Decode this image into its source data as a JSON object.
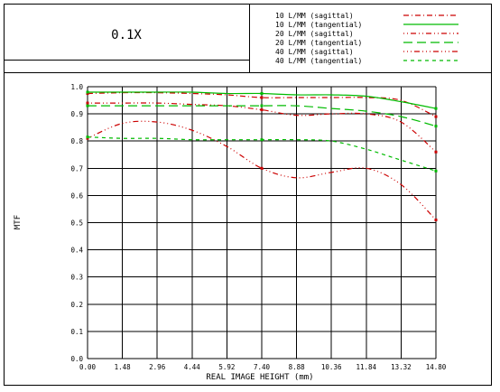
{
  "chart_data": {
    "type": "line",
    "title": "0.1X",
    "xlabel": "REAL IMAGE HEIGHT (mm)",
    "ylabel": "MTF",
    "xlim": [
      0,
      14.8
    ],
    "ylim": [
      0,
      1
    ],
    "xticks": [
      "0.00",
      "1.48",
      "2.96",
      "4.44",
      "5.92",
      "7.40",
      "8.88",
      "10.36",
      "11.84",
      "13.32",
      "14.80"
    ],
    "yticks": [
      "0.0",
      "0.1",
      "0.2",
      "0.3",
      "0.4",
      "0.5",
      "0.6",
      "0.7",
      "0.8",
      "0.9",
      "1.0"
    ],
    "grid": true,
    "legend_position": "top-right",
    "series": [
      {
        "name": "10 L/MM (sagittal)",
        "color": "#cc0000",
        "dash": "6,3,1,3",
        "x": [
          0,
          1.48,
          2.96,
          4.44,
          5.92,
          7.4,
          8.88,
          10.36,
          11.84,
          13.32,
          14.8
        ],
        "y": [
          0.975,
          0.978,
          0.978,
          0.975,
          0.97,
          0.96,
          0.96,
          0.96,
          0.96,
          0.95,
          0.89
        ]
      },
      {
        "name": "10 L/MM (tangential)",
        "color": "#00bb00",
        "dash": "",
        "x": [
          0,
          1.48,
          2.96,
          4.44,
          5.92,
          7.4,
          8.88,
          10.36,
          11.84,
          13.32,
          14.8
        ],
        "y": [
          0.98,
          0.98,
          0.98,
          0.98,
          0.975,
          0.975,
          0.97,
          0.97,
          0.965,
          0.945,
          0.92
        ]
      },
      {
        "name": "20 L/MM (sagittal)",
        "color": "#cc0000",
        "dash": "1,3,1,3,6,3",
        "x": [
          0,
          1.48,
          2.96,
          4.44,
          5.92,
          7.4,
          8.88,
          10.36,
          11.84,
          13.32,
          14.8
        ],
        "y": [
          0.94,
          0.94,
          0.94,
          0.935,
          0.93,
          0.915,
          0.895,
          0.9,
          0.9,
          0.87,
          0.76
        ]
      },
      {
        "name": "20 L/MM (tangential)",
        "color": "#00bb00",
        "dash": "10,5",
        "x": [
          0,
          1.48,
          2.96,
          4.44,
          5.92,
          7.4,
          8.88,
          10.36,
          11.84,
          13.32,
          14.8
        ],
        "y": [
          0.93,
          0.93,
          0.93,
          0.93,
          0.93,
          0.93,
          0.93,
          0.92,
          0.91,
          0.89,
          0.855
        ]
      },
      {
        "name": "40 L/MM (sagittal)",
        "color": "#cc0000",
        "dash": "1,3,1,3,1,3,6,3",
        "x": [
          0,
          1.48,
          2.96,
          4.44,
          5.92,
          7.4,
          8.88,
          10.36,
          11.84,
          13.32,
          14.8
        ],
        "y": [
          0.81,
          0.865,
          0.87,
          0.84,
          0.78,
          0.7,
          0.665,
          0.685,
          0.7,
          0.64,
          0.51
        ]
      },
      {
        "name": "40 L/MM (tangential)",
        "color": "#00bb00",
        "dash": "4,4",
        "x": [
          0,
          1.48,
          2.96,
          4.44,
          5.92,
          7.4,
          8.88,
          10.36,
          11.84,
          13.32,
          14.8
        ],
        "y": [
          0.815,
          0.81,
          0.81,
          0.805,
          0.805,
          0.805,
          0.805,
          0.8,
          0.77,
          0.73,
          0.69
        ]
      }
    ]
  }
}
